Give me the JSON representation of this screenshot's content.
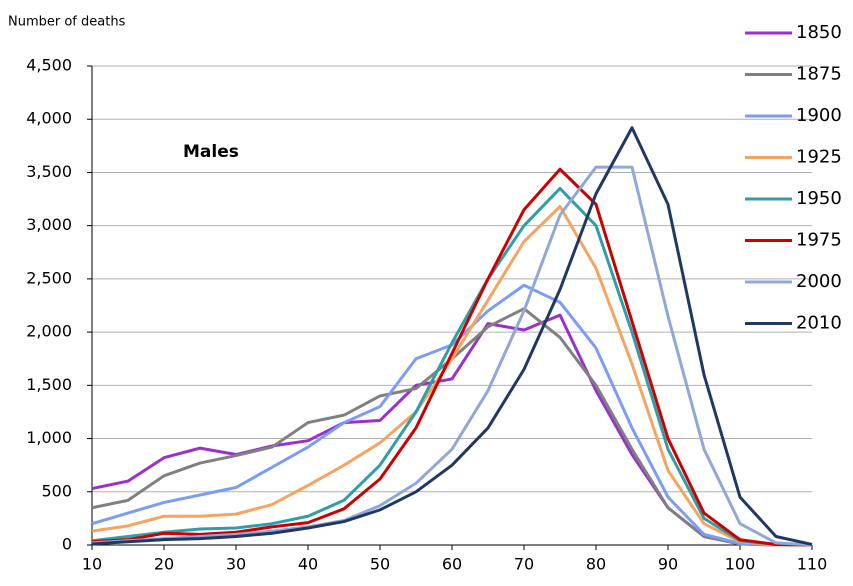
{
  "chart_data": {
    "type": "line",
    "y_label": "Number of deaths",
    "annotation": "Males",
    "x": [
      10,
      15,
      20,
      25,
      30,
      35,
      40,
      45,
      50,
      55,
      60,
      65,
      70,
      75,
      80,
      85,
      90,
      95,
      100,
      105,
      110
    ],
    "xlim": [
      10,
      110
    ],
    "xticks": [
      10,
      20,
      30,
      40,
      50,
      60,
      70,
      80,
      90,
      100,
      110
    ],
    "ylim": [
      0,
      4500
    ],
    "yticks": [
      0,
      500,
      {
        "value": 1000,
        "label": "1,000"
      },
      {
        "value": 1500,
        "label": "1,500"
      },
      {
        "value": 2000,
        "label": "2,000"
      },
      {
        "value": 2500,
        "label": "2,500"
      },
      {
        "value": 3000,
        "label": "3,000"
      },
      {
        "value": 3500,
        "label": "3,500"
      },
      {
        "value": 4000,
        "label": "4,000"
      },
      {
        "value": 4500,
        "label": "4,500"
      }
    ],
    "grid": true,
    "legend": "right",
    "series": [
      {
        "name": "1850",
        "color": "#9932cc",
        "values": [
          530,
          600,
          820,
          910,
          850,
          930,
          980,
          1150,
          1170,
          1500,
          1560,
          2080,
          2020,
          2160,
          1450,
          850,
          350,
          80,
          10,
          0,
          0
        ]
      },
      {
        "name": "1875",
        "color": "#808080",
        "values": [
          350,
          420,
          650,
          770,
          840,
          920,
          1150,
          1220,
          1400,
          1470,
          1750,
          2050,
          2220,
          1950,
          1500,
          900,
          350,
          80,
          10,
          0,
          0
        ]
      },
      {
        "name": "1900",
        "color": "#7b9cf7",
        "values": [
          200,
          300,
          400,
          470,
          540,
          730,
          920,
          1150,
          1300,
          1750,
          1880,
          2200,
          2440,
          2280,
          1850,
          1100,
          450,
          100,
          15,
          0,
          0
        ]
      },
      {
        "name": "1925",
        "color": "#f5a461",
        "values": [
          130,
          180,
          270,
          270,
          290,
          380,
          560,
          750,
          960,
          1250,
          1750,
          2300,
          2850,
          3180,
          2600,
          1700,
          700,
          200,
          30,
          0,
          0
        ]
      },
      {
        "name": "1950",
        "color": "#2f9ea6",
        "values": [
          40,
          80,
          120,
          150,
          160,
          200,
          270,
          420,
          750,
          1250,
          1900,
          2500,
          3000,
          3350,
          3000,
          2000,
          900,
          250,
          40,
          5,
          0
        ]
      },
      {
        "name": "1975",
        "color": "#cc0000",
        "values": [
          30,
          50,
          110,
          100,
          120,
          170,
          210,
          340,
          620,
          1100,
          1800,
          2500,
          3150,
          3530,
          3200,
          2100,
          1000,
          300,
          50,
          5,
          0
        ]
      },
      {
        "name": "2000",
        "color": "#8fa8d8",
        "values": [
          20,
          40,
          60,
          80,
          100,
          130,
          170,
          230,
          370,
          580,
          900,
          1450,
          2200,
          3100,
          3550,
          3550,
          2150,
          900,
          200,
          20,
          0
        ]
      },
      {
        "name": "2010",
        "color": "#1f3864",
        "values": [
          10,
          30,
          50,
          60,
          80,
          110,
          160,
          220,
          330,
          500,
          750,
          1100,
          1650,
          2400,
          3300,
          3920,
          3200,
          1600,
          450,
          80,
          5
        ]
      }
    ]
  }
}
